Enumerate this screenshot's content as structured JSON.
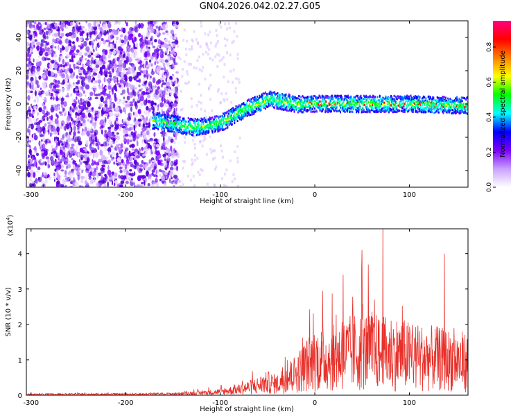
{
  "title": "GN04.2026.042.02.27.G05",
  "chart_data": [
    {
      "type": "heatmap",
      "xlabel": "Height of straight line (km)",
      "ylabel": "Frequency (Hz)",
      "xlim": [
        -305,
        162
      ],
      "ylim": [
        -50,
        50
      ],
      "xticks": [
        -300,
        -200,
        -100,
        0,
        100
      ],
      "yticks": [
        -40,
        -20,
        0,
        20,
        40
      ],
      "colorbar": {
        "label": "Normalized spectral amplitude",
        "range": [
          0,
          0.95
        ],
        "ticks": [
          "0.0",
          "0.2",
          "0.4",
          "0.6",
          "0.8"
        ],
        "colors": [
          "#ffffff",
          "#c9a0ff",
          "#7a00ff",
          "#0000ff",
          "#00ffff",
          "#00ff00",
          "#ffff00",
          "#ff8000",
          "#ff0000",
          "#ff0080"
        ]
      },
      "ridge": {
        "x": [
          -170,
          -150,
          -130,
          -110,
          -95,
          -80,
          -70,
          -60,
          -50,
          -40,
          -30,
          -20,
          0,
          50,
          100,
          162
        ],
        "y": [
          -10,
          -12,
          -14,
          -13,
          -10,
          -5,
          -2,
          0,
          3,
          2,
          1,
          0,
          0,
          0,
          0,
          -1
        ]
      },
      "grid": false,
      "legend": "none"
    },
    {
      "type": "line",
      "xlabel": "Height of straight line (km)",
      "ylabel": "SNR (10 * v/v)",
      "scale_label": "(x10",
      "scale_exp": "4",
      "xlim": [
        -305,
        162
      ],
      "ylim": [
        0,
        4.7
      ],
      "xticks": [
        -300,
        -200,
        -100,
        0,
        100
      ],
      "yticks": [
        0,
        1,
        2,
        3,
        4
      ],
      "series": [
        {
          "color": "#e8302a",
          "x": [
            -305,
            -250,
            -200,
            -150,
            -120,
            -100,
            -80,
            -60,
            -50,
            -40,
            -30,
            -20,
            -10,
            0,
            20,
            40,
            60,
            70,
            80,
            100,
            120,
            140,
            162
          ],
          "y": [
            0.04,
            0.05,
            0.05,
            0.07,
            0.12,
            0.18,
            0.3,
            0.5,
            0.65,
            0.55,
            0.9,
            1.1,
            1.5,
            1.8,
            1.9,
            2.2,
            2.3,
            2.1,
            2.2,
            2.0,
            1.9,
            1.8,
            1.7
          ]
        }
      ],
      "peaks": [
        {
          "x": 72,
          "y": 4.7
        },
        {
          "x": 50,
          "y": 4.1
        },
        {
          "x": 137,
          "y": 4.0
        },
        {
          "x": 30,
          "y": 3.4
        }
      ],
      "grid": false,
      "legend": "none"
    }
  ]
}
